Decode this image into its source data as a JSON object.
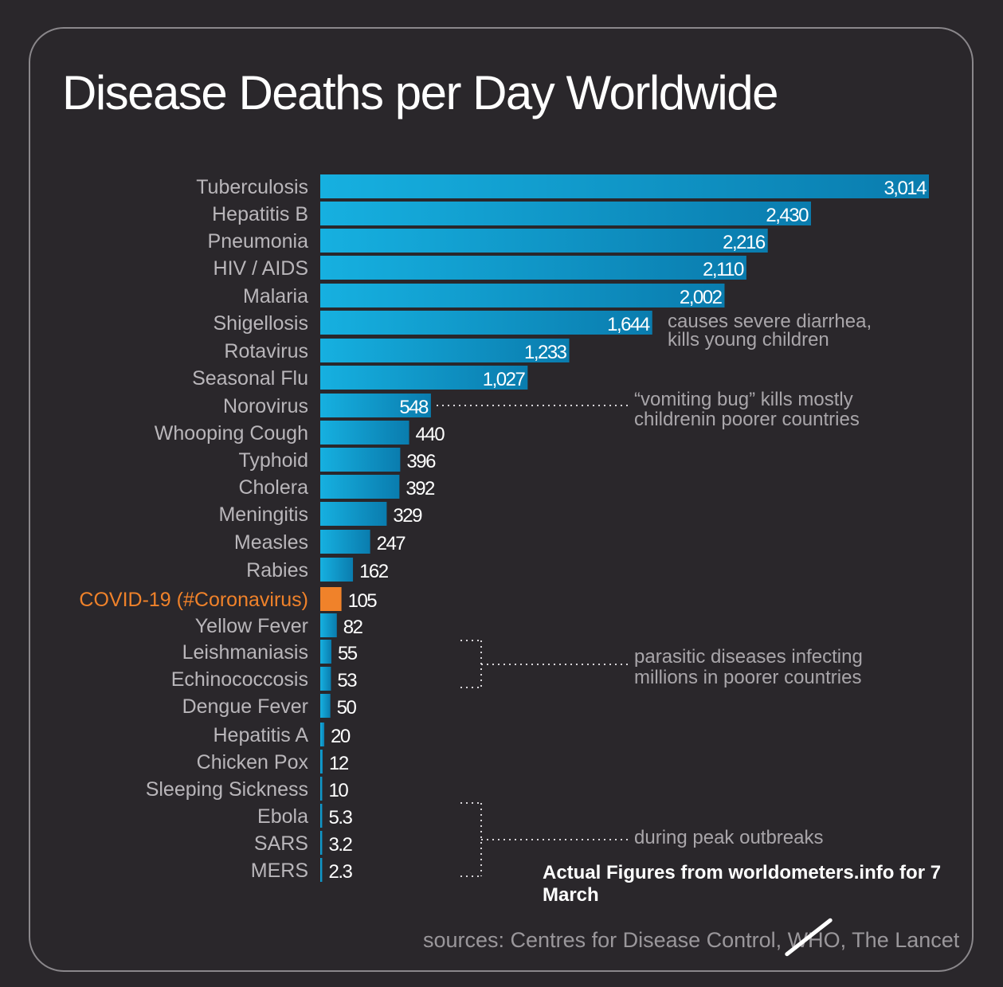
{
  "chart_data": {
    "type": "bar",
    "orientation": "horizontal",
    "title": "Disease Deaths per Day Worldwide",
    "categories": [
      "Tuberculosis",
      "Hepatitis B",
      "Pneumonia",
      "HIV / AIDS",
      "Malaria",
      "Shigellosis",
      "Rotavirus",
      "Seasonal Flu",
      "Norovirus",
      "Whooping Cough",
      "Typhoid",
      "Cholera",
      "Meningitis",
      "Measles",
      "Rabies",
      "COVID-19 (#Coronavirus)",
      "Yellow Fever",
      "Leishmaniasis",
      "Echinococcosis",
      "Dengue Fever",
      "Hepatitis A",
      "Chicken Pox",
      "Sleeping Sickness",
      "Ebola",
      "SARS",
      "MERS"
    ],
    "values": [
      3014,
      2430,
      2216,
      2110,
      2002,
      1644,
      1233,
      1027,
      548,
      440,
      396,
      392,
      329,
      247,
      162,
      105,
      82,
      55,
      53,
      50,
      20,
      12,
      10,
      5.3,
      3.2,
      2.3
    ],
    "value_labels": [
      "3,014",
      "2,430",
      "2,216",
      "2,110",
      "2,002",
      "1,644",
      "1,233",
      "1,027",
      "548",
      "440",
      "396",
      "392",
      "329",
      "247",
      "162",
      "105",
      "82",
      "55",
      "53",
      "50",
      "20",
      "12",
      "10",
      "5.3",
      "3.2",
      "2.3"
    ],
    "highlight": "COVID-19 (#Coronavirus)",
    "annotations": [
      {
        "target": "Shigellosis",
        "lines": [
          "causes severe diarrhea,",
          "kills young children"
        ]
      },
      {
        "target": "Norovirus",
        "lines": [
          "“vomiting bug” kills mostly",
          "childrenin poorer countries"
        ]
      },
      {
        "target": "Leishmaniasis, Echinococcosis",
        "lines": [
          "parasitic diseases infecting",
          "millions in poorer countries"
        ]
      },
      {
        "target": "Ebola, SARS, MERS",
        "lines": [
          "during peak outbreaks"
        ]
      }
    ],
    "colors": {
      "bar": "#12a3d4",
      "bar_dark": "#0b78a8",
      "highlight": "#f0822a",
      "label_text": "#b9b6ba",
      "highlight_text": "#f0822a",
      "value_text": "#ffffff",
      "annotation_text": "#a9a6aa",
      "background": "#2a272b"
    }
  },
  "footnote": "Actual Figures from worldometers.info for 7 March",
  "source": "sources: Centres for Disease Control, WHO, The Lancet"
}
